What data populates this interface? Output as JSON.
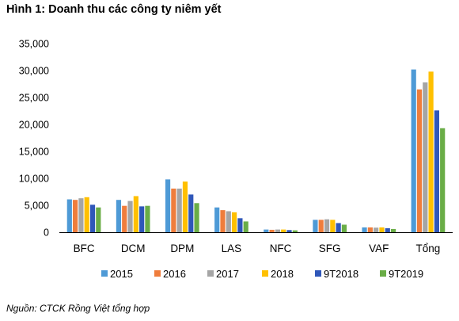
{
  "figure": {
    "title": "Hình 1: Doanh thu các công ty niêm yết",
    "source": "Nguồn: CTCK Rồng Việt tổng hợp"
  },
  "colors": {
    "2015": "#4e9ad6",
    "2016": "#ef7d3c",
    "2017": "#a5a5a5",
    "2018": "#ffc000",
    "9T2018": "#2f57b9",
    "9T2019": "#6aad47",
    "axis": "#000000"
  },
  "chart_data": {
    "type": "bar",
    "title": "Hình 1: Doanh thu các công ty niêm yết",
    "xlabel": "",
    "ylabel": "",
    "ylim": [
      0,
      35000
    ],
    "yticks": [
      0,
      5000,
      10000,
      15000,
      20000,
      25000,
      30000,
      35000
    ],
    "ytick_labels": [
      "0",
      "5,000",
      "10,000",
      "15,000",
      "20,000",
      "25,000",
      "30,000",
      "35,000"
    ],
    "grid": false,
    "legend": "bottom",
    "categories": [
      "BFC",
      "DCM",
      "DPM",
      "LAS",
      "NFC",
      "SFG",
      "VAF",
      "Tổng"
    ],
    "series": [
      {
        "name": "2015",
        "color": "#4e9ad6",
        "values": [
          6100,
          6000,
          9800,
          4600,
          500,
          2300,
          900,
          30200
        ]
      },
      {
        "name": "2016",
        "color": "#ef7d3c",
        "values": [
          6000,
          4900,
          8100,
          4100,
          450,
          2300,
          900,
          26500
        ]
      },
      {
        "name": "2017",
        "color": "#a5a5a5",
        "values": [
          6300,
          5800,
          8100,
          3900,
          500,
          2400,
          850,
          27800
        ]
      },
      {
        "name": "2018",
        "color": "#ffc000",
        "values": [
          6500,
          6700,
          9400,
          3700,
          500,
          2300,
          900,
          29800
        ]
      },
      {
        "name": "9T2018",
        "color": "#2f57b9",
        "values": [
          5100,
          4800,
          7000,
          2600,
          400,
          1700,
          750,
          22600
        ]
      },
      {
        "name": "9T2019",
        "color": "#6aad47",
        "values": [
          4600,
          4900,
          5400,
          2000,
          350,
          1400,
          600,
          19300
        ]
      }
    ]
  }
}
